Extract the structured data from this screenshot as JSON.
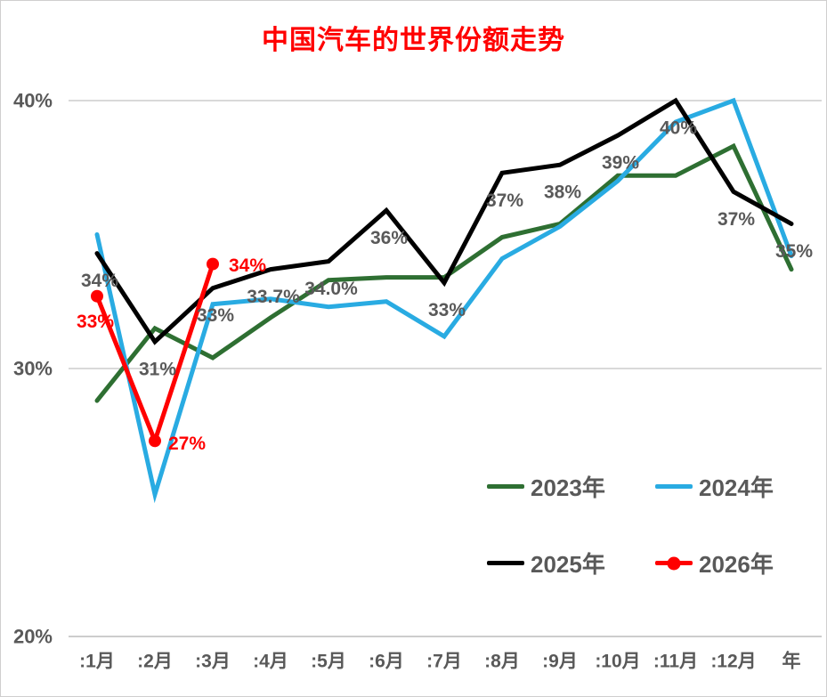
{
  "title": {
    "text": "中国汽车的世界份额走势"
  },
  "colors": {
    "title": "#FF0000",
    "axis_text": "#595959",
    "data_label": "#595959",
    "gridline": "#D9D9D9",
    "axis_line": "#CDCDCD",
    "border": "#D0CECE",
    "background": "#FFFFFF"
  },
  "chart_data": {
    "type": "line",
    "title": "中国汽车的世界份额走势",
    "categories": [
      ":1月",
      ":2月",
      ":3月",
      ":4月",
      ":5月",
      ":6月",
      ":7月",
      ":8月",
      ":9月",
      ":10月",
      ":11月",
      ":12月",
      "年"
    ],
    "y_axis": {
      "min": 20,
      "max": 40,
      "format": "percent",
      "ticks": [
        {
          "value": 40,
          "label": "40%"
        },
        {
          "value": 30,
          "label": "30%"
        },
        {
          "value": 20,
          "label": "20%"
        }
      ]
    },
    "grid": true,
    "legend_position": "inside-bottom-right",
    "series": [
      {
        "name": "2023年",
        "color": "#2E6F32",
        "marker": false,
        "values": [
          28.8,
          31.5,
          30.4,
          31.9,
          33.3,
          33.4,
          33.4,
          34.9,
          35.4,
          37.2,
          37.2,
          38.3,
          33.7
        ]
      },
      {
        "name": "2024年",
        "color": "#29ABE2",
        "marker": false,
        "values": [
          35.0,
          25.3,
          32.4,
          32.6,
          32.3,
          32.5,
          31.2,
          34.1,
          35.3,
          37.0,
          39.2,
          40.0,
          34.2
        ]
      },
      {
        "name": "2025年",
        "color": "#000000",
        "marker": false,
        "values": [
          34.3,
          31.0,
          33.0,
          33.7,
          34.0,
          35.9,
          33.2,
          37.3,
          37.6,
          38.7,
          40.0,
          36.6,
          35.4
        ],
        "label_color": "#595959",
        "label_offset": {
          "dx": 3,
          "dy": 31
        },
        "labels": [
          {
            "text": "34%"
          },
          {
            "text": "31%"
          },
          {
            "text": "33%"
          },
          {
            "text": "33.7%"
          },
          {
            "text": "34.0%"
          },
          {
            "text": "36%"
          },
          {
            "text": "33%"
          },
          {
            "text": "37%"
          },
          {
            "text": "38%"
          },
          {
            "text": "39%"
          },
          {
            "text": "40%"
          },
          {
            "text": "37%"
          },
          {
            "text": "35%"
          }
        ]
      },
      {
        "name": "2026年",
        "color": "#FF0000",
        "marker": true,
        "values": [
          32.7,
          27.3,
          33.9,
          null,
          null,
          null,
          null,
          null,
          null,
          null,
          null,
          null,
          null
        ],
        "label_color": "#FF0000",
        "labels": [
          {
            "text": "33%",
            "dx": -2,
            "dy": 29
          },
          {
            "text": "27%",
            "dx": 36,
            "dy": 3
          },
          {
            "text": "34%",
            "dx": 39,
            "dy": 2
          }
        ]
      }
    ]
  },
  "legend": {
    "items": [
      {
        "label": "2023年",
        "color": "#2E6F32",
        "marker": false
      },
      {
        "label": "2024年",
        "color": "#29ABE2",
        "marker": false
      },
      {
        "label": "2025年",
        "color": "#000000",
        "marker": false
      },
      {
        "label": "2026年",
        "color": "#FF0000",
        "marker": true
      }
    ]
  }
}
